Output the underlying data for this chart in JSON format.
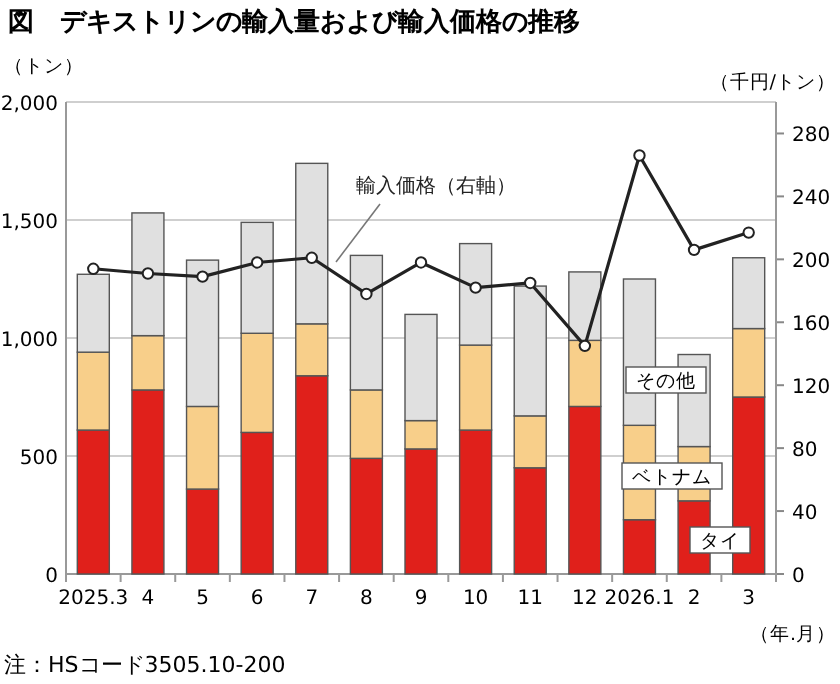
{
  "chart_data": {
    "type": "bar",
    "stacked": true,
    "title": "図　デキストリンの輸入量および輸入価格の推移",
    "ylabel": "（トン）",
    "y2label": "（千円/トン）",
    "xlabel": "（年.月）",
    "annotations": [
      "注：HSコード3505.10-200"
    ],
    "categories": [
      "2025.3",
      "4",
      "5",
      "6",
      "7",
      "8",
      "9",
      "10",
      "11",
      "12",
      "2026.1",
      "2",
      "3"
    ],
    "ylim": [
      0,
      2000
    ],
    "yticks": [
      {
        "value": 0,
        "label": "0"
      },
      {
        "value": 500,
        "label": "500"
      },
      {
        "value": 1000,
        "label": "1,000"
      },
      {
        "value": 1500,
        "label": "1,500"
      },
      {
        "value": 2000,
        "label": "2,000"
      }
    ],
    "y2lim": [
      0,
      300
    ],
    "y2ticks": [
      0,
      40,
      80,
      120,
      160,
      200,
      240,
      280
    ],
    "grid": "y",
    "series": [
      {
        "name": "タイ",
        "color": "#e0201b",
        "values": [
          610,
          780,
          360,
          600,
          840,
          490,
          530,
          610,
          450,
          710,
          230,
          310,
          750
        ]
      },
      {
        "name": "ベトナム",
        "color": "#f8cf8a",
        "values": [
          330,
          230,
          350,
          420,
          220,
          290,
          120,
          360,
          220,
          280,
          400,
          230,
          290
        ]
      },
      {
        "name": "その他",
        "color": "#e0e0e0",
        "values": [
          330,
          520,
          620,
          470,
          680,
          570,
          450,
          430,
          550,
          290,
          620,
          390,
          300
        ]
      },
      {
        "name": "輸入価格（右軸）",
        "type": "line",
        "axis": "y2",
        "color": "#222222",
        "marker": "circle",
        "values": [
          194,
          191,
          189,
          198,
          201,
          178,
          198,
          182,
          185,
          145,
          266,
          206,
          217
        ]
      }
    ]
  }
}
